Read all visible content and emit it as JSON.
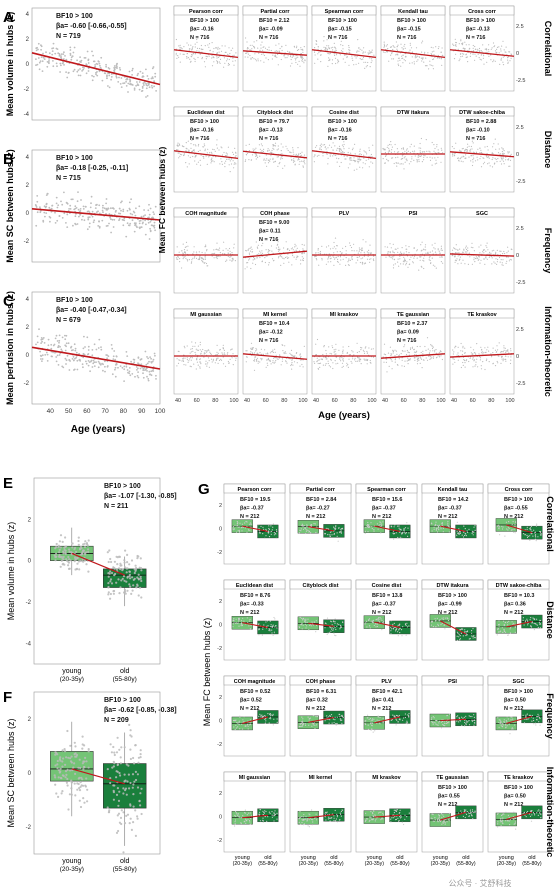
{
  "figure": {
    "age_axis_label": "Age (years)",
    "watermark": "公众号 · 艾舒科技",
    "colors": {
      "scatter": "#bdbdbd",
      "regression": "#c0181c",
      "box_young": "#74c476",
      "box_old": "#1a7f3c",
      "panel_title_bg": "#ffffff"
    }
  },
  "chart_data": [
    {
      "id": "A",
      "type": "scatter",
      "ylabel": "Mean volume in hubs (z)",
      "stats": [
        "BF10 > 100",
        "βa= -0.60 [-0.66,-0.55]",
        "N = 719"
      ],
      "xlim": [
        30,
        100
      ],
      "ylim": [
        -4.5,
        4.5
      ],
      "yticks": [
        -4,
        -2,
        0,
        2,
        4
      ],
      "regression": {
        "x": [
          30,
          100
        ],
        "y": [
          0.9,
          -1.65
        ]
      }
    },
    {
      "id": "B",
      "type": "scatter",
      "ylabel": "Mean SC between hubs (z)",
      "stats": [
        "BF10 > 100",
        "βa= -0.18 [-0.25, -0.11]",
        "N = 715"
      ],
      "xlim": [
        30,
        100
      ],
      "ylim": [
        -3.5,
        4.5
      ],
      "yticks": [
        -2,
        0,
        2,
        4
      ],
      "regression": {
        "x": [
          30,
          100
        ],
        "y": [
          0.3,
          -0.5
        ]
      }
    },
    {
      "id": "C",
      "type": "scatter",
      "ylabel": "Mean perfusion in hubs (z)",
      "stats": [
        "BF10 > 100",
        "βa= -0.40 [-0.47,-0.34]",
        "N = 679"
      ],
      "xlim": [
        30,
        100
      ],
      "ylim": [
        -3.5,
        4.5
      ],
      "yticks": [
        -2,
        0,
        2,
        4
      ],
      "xticks": [
        40,
        50,
        60,
        70,
        80,
        90,
        100
      ],
      "regression": {
        "x": [
          30,
          100
        ],
        "y": [
          0.55,
          -1.0
        ]
      }
    },
    {
      "id": "D",
      "type": "scatter_grid",
      "ylabel": "Mean FC between hubs (z)",
      "xticks": [
        40,
        60,
        80,
        100
      ],
      "yticks": [
        -2.5,
        0,
        2.5
      ],
      "row_labels": [
        "Correlational",
        "Distance",
        "Frequency",
        "Information-theoretic"
      ],
      "panels": [
        {
          "title": "Pearson corr",
          "stats": [
            "BF10 > 100",
            "βa= -0.16",
            "N = 716"
          ],
          "y1": 0.3,
          "y2": -0.4
        },
        {
          "title": "Partial corr",
          "stats": [
            "BF10 = 2.12",
            "βa= -0.09",
            "N = 716"
          ],
          "y1": 0.2,
          "y2": -0.2
        },
        {
          "title": "Spearman corr",
          "stats": [
            "BF10 > 100",
            "βa= -0.15",
            "N = 716"
          ],
          "y1": 0.3,
          "y2": -0.4
        },
        {
          "title": "Kendall tau",
          "stats": [
            "BF10 > 100",
            "βa= -0.15",
            "N = 716"
          ],
          "y1": 0.3,
          "y2": -0.4
        },
        {
          "title": "Cross corr",
          "stats": [
            "BF10 > 100",
            "βa= -0.13",
            "N = 716"
          ],
          "y1": 0.3,
          "y2": -0.3,
          "show_yticks": true
        },
        {
          "title": "Euclidean dist",
          "stats": [
            "BF10 > 100",
            "βa= -0.16",
            "N = 716"
          ],
          "y1": 0.3,
          "y2": -0.4
        },
        {
          "title": "Cityblock dist",
          "stats": [
            "BF10 = 79.7",
            "βa= -0.13",
            "N = 716"
          ],
          "y1": 0.25,
          "y2": -0.35
        },
        {
          "title": "Cosine dist",
          "stats": [
            "BF10 > 100",
            "βa= -0.16",
            "N = 716"
          ],
          "y1": 0.3,
          "y2": -0.4
        },
        {
          "title": "DTW itakura",
          "stats": [],
          "y1": 0.0,
          "y2": 0.0
        },
        {
          "title": "DTW sakoe-chiba",
          "stats": [
            "BF10 = 2.88",
            "βa= -0.10",
            "N = 716"
          ],
          "y1": 0.2,
          "y2": -0.25,
          "show_yticks": true
        },
        {
          "title": "COH magnitude",
          "stats": [],
          "y1": 0.0,
          "y2": 0.0
        },
        {
          "title": "COH phase",
          "stats": [
            "BF10 = 9.00",
            "βa= 0.11",
            "N = 716"
          ],
          "y1": -0.2,
          "y2": 0.35
        },
        {
          "title": "PLV",
          "stats": [],
          "y1": 0.0,
          "y2": 0.0
        },
        {
          "title": "PSI",
          "stats": [],
          "y1": 0.0,
          "y2": 0.0
        },
        {
          "title": "SGC",
          "stats": [],
          "y1": 0.1,
          "y2": -0.1,
          "show_yticks": true
        },
        {
          "title": "MI gaussian",
          "stats": [],
          "y1": 0.0,
          "y2": 0.0
        },
        {
          "title": "MI kernel",
          "stats": [
            "BF10 = 10.4",
            "βa= -0.12",
            "N = 716"
          ],
          "y1": 0.2,
          "y2": -0.3
        },
        {
          "title": "MI kraskov",
          "stats": [],
          "y1": 0.0,
          "y2": 0.0
        },
        {
          "title": "TE gaussian",
          "stats": [
            "BF10 = 2.37",
            "βa= 0.09",
            "N = 716"
          ],
          "y1": -0.2,
          "y2": 0.2
        },
        {
          "title": "TE kraskov",
          "stats": [],
          "y1": -0.1,
          "y2": 0.2,
          "show_yticks": true
        }
      ]
    },
    {
      "id": "E",
      "type": "box",
      "ylabel": "Mean volume in hubs (z)",
      "stats": [
        "BF10 > 100",
        "βa= -1.07 [-1.30, -0.85]",
        "N = 211"
      ],
      "categories": [
        "young",
        "old"
      ],
      "category_sub": [
        "(20-35y)",
        "(55-80y)"
      ],
      "ylim": [
        -5,
        4
      ],
      "yticks": [
        -4,
        -2,
        0,
        2
      ],
      "boxes": [
        {
          "q1": 0.0,
          "median": 0.35,
          "q3": 0.7,
          "min": -0.7,
          "max": 1.6
        },
        {
          "q1": -1.3,
          "median": -0.7,
          "q3": -0.4,
          "min": -2.2,
          "max": 0.2
        }
      ]
    },
    {
      "id": "F",
      "type": "box",
      "ylabel": "Mean SC between hubs (z)",
      "stats": [
        "BF10 > 100",
        "βa= -0.62 [-0.85, -0.38]",
        "N = 209"
      ],
      "categories": [
        "young",
        "old"
      ],
      "category_sub": [
        "(20-35y)",
        "(55-80y)"
      ],
      "ylim": [
        -3,
        3
      ],
      "yticks": [
        -2,
        0,
        2
      ],
      "boxes": [
        {
          "q1": -0.3,
          "median": 0.15,
          "q3": 0.8,
          "min": -1.6,
          "max": 1.9
        },
        {
          "q1": -1.3,
          "median": -0.4,
          "q3": 0.35,
          "min": -2.7,
          "max": 1.5
        }
      ]
    },
    {
      "id": "G",
      "type": "box_grid",
      "ylabel": "Mean FC between hubs (z)",
      "categories": [
        "young",
        "old"
      ],
      "category_sub": [
        "(20-35y)",
        "(55-80y)"
      ],
      "yticks": [
        -2,
        0,
        2
      ],
      "row_labels": [
        "Correlational",
        "Distance",
        "Frequency",
        "Information-theoretic"
      ],
      "panels": [
        {
          "title": "Pearson corr",
          "stats": [
            "BF10 = 19.5",
            "βa= -0.37",
            "N = 212"
          ],
          "m1": 0.2,
          "m2": -0.25
        },
        {
          "title": "Partial corr",
          "stats": [
            "BF10 = 2.84",
            "βa= -0.27",
            "N = 212"
          ],
          "m1": 0.15,
          "m2": -0.2
        },
        {
          "title": "Spearman corr",
          "stats": [
            "BF10 = 15.6",
            "βa= -0.37",
            "N = 212"
          ],
          "m1": 0.2,
          "m2": -0.25
        },
        {
          "title": "Kendall tau",
          "stats": [
            "BF10 = 14.2",
            "βa= -0.37",
            "N = 212"
          ],
          "m1": 0.2,
          "m2": -0.25
        },
        {
          "title": "Cross corr",
          "stats": [
            "BF10 > 100",
            "βa= -0.55",
            "N = 212"
          ],
          "m1": 0.3,
          "m2": -0.35
        },
        {
          "title": "Euclidean dist",
          "stats": [
            "BF10 = 8.76",
            "βa= -0.33",
            "N = 212"
          ],
          "m1": 0.15,
          "m2": -0.25
        },
        {
          "title": "Cityblock dist",
          "stats": [],
          "m1": 0.1,
          "m2": -0.15
        },
        {
          "title": "Cosine dist",
          "stats": [
            "BF10 = 13.8",
            "βa= -0.37",
            "N = 212"
          ],
          "m1": 0.2,
          "m2": -0.25
        },
        {
          "title": "DTW itakura",
          "stats": [
            "BF10 > 100",
            "βa= -0.99",
            "N = 212"
          ],
          "m1": 0.3,
          "m2": -0.8
        },
        {
          "title": "DTW sakoe-chiba",
          "stats": [
            "BF10 = 10.3",
            "βa= 0.36",
            "N = 212"
          ],
          "m1": -0.2,
          "m2": 0.25
        },
        {
          "title": "COH magnitude",
          "stats": [
            "BF10 = 0.52",
            "βa= 0.52",
            "N = 212"
          ],
          "m1": -0.25,
          "m2": 0.3
        },
        {
          "title": "COH phase",
          "stats": [
            "BF10 = 6.31",
            "βa= 0.32",
            "N = 212"
          ],
          "m1": -0.15,
          "m2": 0.25
        },
        {
          "title": "PLV",
          "stats": [
            "BF10 = 42.1",
            "βa= 0.41",
            "N = 212"
          ],
          "m1": -0.2,
          "m2": 0.3
        },
        {
          "title": "PSI",
          "stats": [],
          "m1": 0.0,
          "m2": 0.1
        },
        {
          "title": "SGC",
          "stats": [
            "BF10 > 100",
            "βa= 0.50",
            "N = 212"
          ],
          "m1": -0.25,
          "m2": 0.35
        },
        {
          "title": "MI gaussian",
          "stats": [],
          "m1": -0.1,
          "m2": 0.1
        },
        {
          "title": "MI kernel",
          "stats": [],
          "m1": -0.1,
          "m2": 0.15
        },
        {
          "title": "MI kraskov",
          "stats": [],
          "m1": -0.05,
          "m2": 0.1
        },
        {
          "title": "TE gaussian",
          "stats": [
            "BF10 > 100",
            "βa= 0.55",
            "N = 212"
          ],
          "m1": -0.3,
          "m2": 0.35
        },
        {
          "title": "TE kraskov",
          "stats": [
            "BF10 > 100",
            "βa= 0.50",
            "N = 212"
          ],
          "m1": -0.25,
          "m2": 0.35
        }
      ]
    }
  ]
}
